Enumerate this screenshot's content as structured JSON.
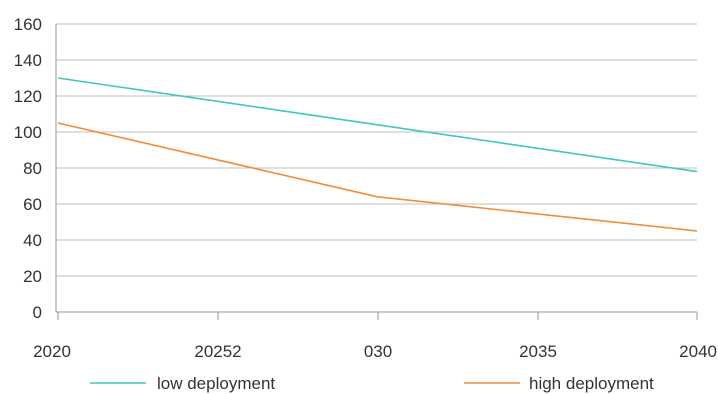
{
  "chart_data": {
    "type": "line",
    "title": "",
    "xlabel": "",
    "ylabel": "",
    "x_tick_labels": [
      "2020",
      "20252",
      "030",
      "2035",
      "2040"
    ],
    "y_ticks": [
      0,
      20,
      40,
      60,
      80,
      100,
      120,
      140,
      160
    ],
    "y_tick_labels": [
      "0",
      "20",
      "40",
      "60",
      "80",
      "100",
      "120",
      "140",
      "160"
    ],
    "ylim": [
      0,
      160
    ],
    "grid": true,
    "legend_position": "bottom",
    "series": [
      {
        "name": "low deployment",
        "color": "#3ec6c6",
        "points": [
          {
            "x": 2020,
            "y": 130
          },
          {
            "x": 2030,
            "y": 104
          },
          {
            "x": 2040,
            "y": 78
          }
        ]
      },
      {
        "name": "high deployment",
        "color": "#f28c38",
        "points": [
          {
            "x": 2020,
            "y": 105
          },
          {
            "x": 2030,
            "y": 64
          },
          {
            "x": 2040,
            "y": 45
          }
        ]
      }
    ]
  }
}
